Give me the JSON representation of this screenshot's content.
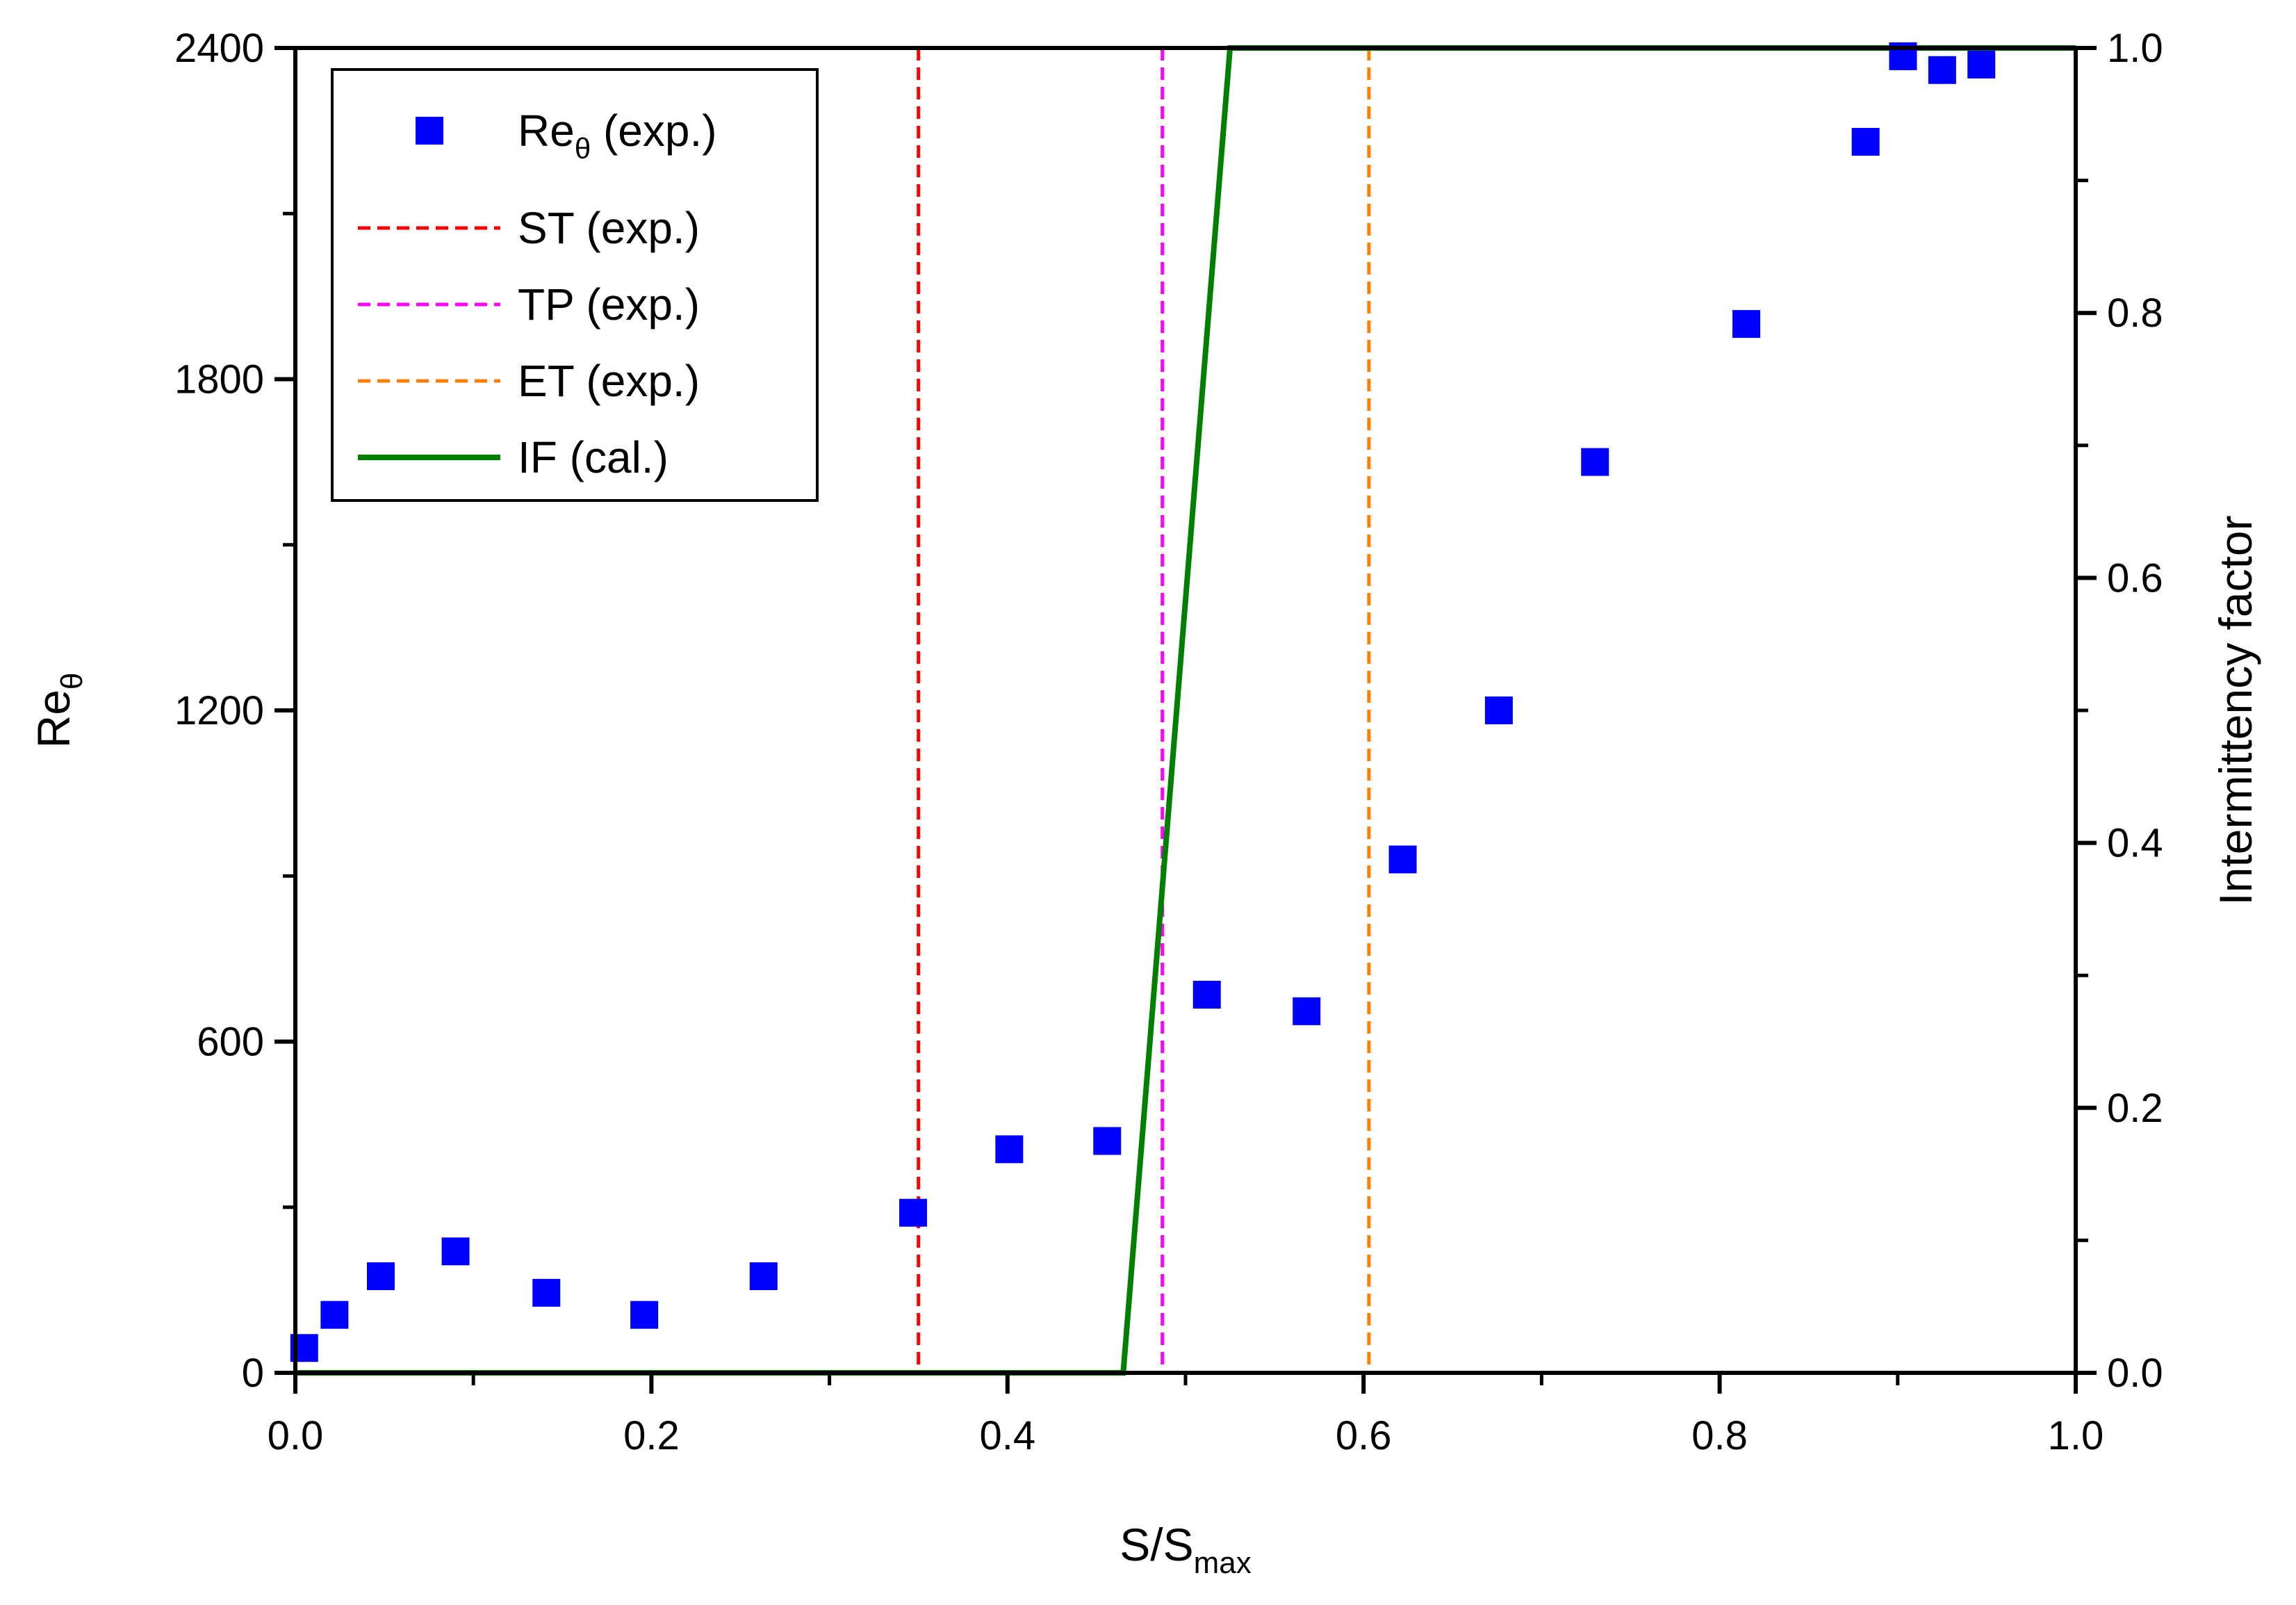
{
  "chart_data": {
    "type": "scatter",
    "title": "",
    "xlabel": "S/S",
    "xlabel_sub": "max",
    "ylabel": "Re",
    "ylabel_sub": "θ",
    "y2label": "Intermittency factor",
    "xlim": [
      0,
      1
    ],
    "ylim": [
      0,
      2400
    ],
    "y2lim": [
      0,
      1
    ],
    "x_ticks": [
      {
        "value": 0.0,
        "label": "0.0"
      },
      {
        "value": 0.2,
        "label": "0.2"
      },
      {
        "value": 0.4,
        "label": "0.4"
      },
      {
        "value": 0.6,
        "label": "0.6"
      },
      {
        "value": 0.8,
        "label": "0.8"
      },
      {
        "value": 1.0,
        "label": "1.0"
      }
    ],
    "y_ticks": [
      {
        "value": 0,
        "label": "0"
      },
      {
        "value": 600,
        "label": "600"
      },
      {
        "value": 1200,
        "label": "1200"
      },
      {
        "value": 1800,
        "label": "1800"
      },
      {
        "value": 2400,
        "label": "2400"
      }
    ],
    "y2_ticks": [
      {
        "value": 0.0,
        "label": "0.0"
      },
      {
        "value": 0.2,
        "label": "0.2"
      },
      {
        "value": 0.4,
        "label": "0.4"
      },
      {
        "value": 0.6,
        "label": "0.6"
      },
      {
        "value": 0.8,
        "label": "0.8"
      },
      {
        "value": 1.0,
        "label": "1.0"
      }
    ],
    "series": [
      {
        "name": "Re",
        "name_sub": "θ",
        "name_suffix": " (exp.)",
        "kind": "scatter",
        "axis": "left",
        "color": "#0000FF",
        "x": [
          0.005,
          0.022,
          0.048,
          0.09,
          0.141,
          0.196,
          0.263,
          0.347,
          0.401,
          0.456,
          0.512,
          0.568,
          0.622,
          0.676,
          0.73,
          0.815,
          0.882,
          0.903,
          0.925,
          0.947
        ],
        "y": [
          45,
          105,
          175,
          220,
          145,
          105,
          175,
          290,
          405,
          420,
          685,
          655,
          930,
          1200,
          1650,
          1900,
          2230,
          2385,
          2360,
          2370
        ]
      },
      {
        "name": "ST (exp.)",
        "kind": "vline",
        "x": 0.35,
        "color": "#FF0000",
        "dashed": true
      },
      {
        "name": "TP (exp.)",
        "kind": "vline",
        "x": 0.487,
        "color": "#FF00FF",
        "dashed": true
      },
      {
        "name": "ET (exp.)",
        "kind": "vline",
        "x": 0.603,
        "color": "#FF8000",
        "dashed": true
      },
      {
        "name": "IF (cal.)",
        "kind": "line",
        "axis": "right",
        "color": "#007F00",
        "x": [
          0.0,
          0.465,
          0.525,
          1.0
        ],
        "y": [
          0.0,
          0.0,
          1.0,
          1.0
        ]
      }
    ],
    "legend_position": "top-left"
  }
}
